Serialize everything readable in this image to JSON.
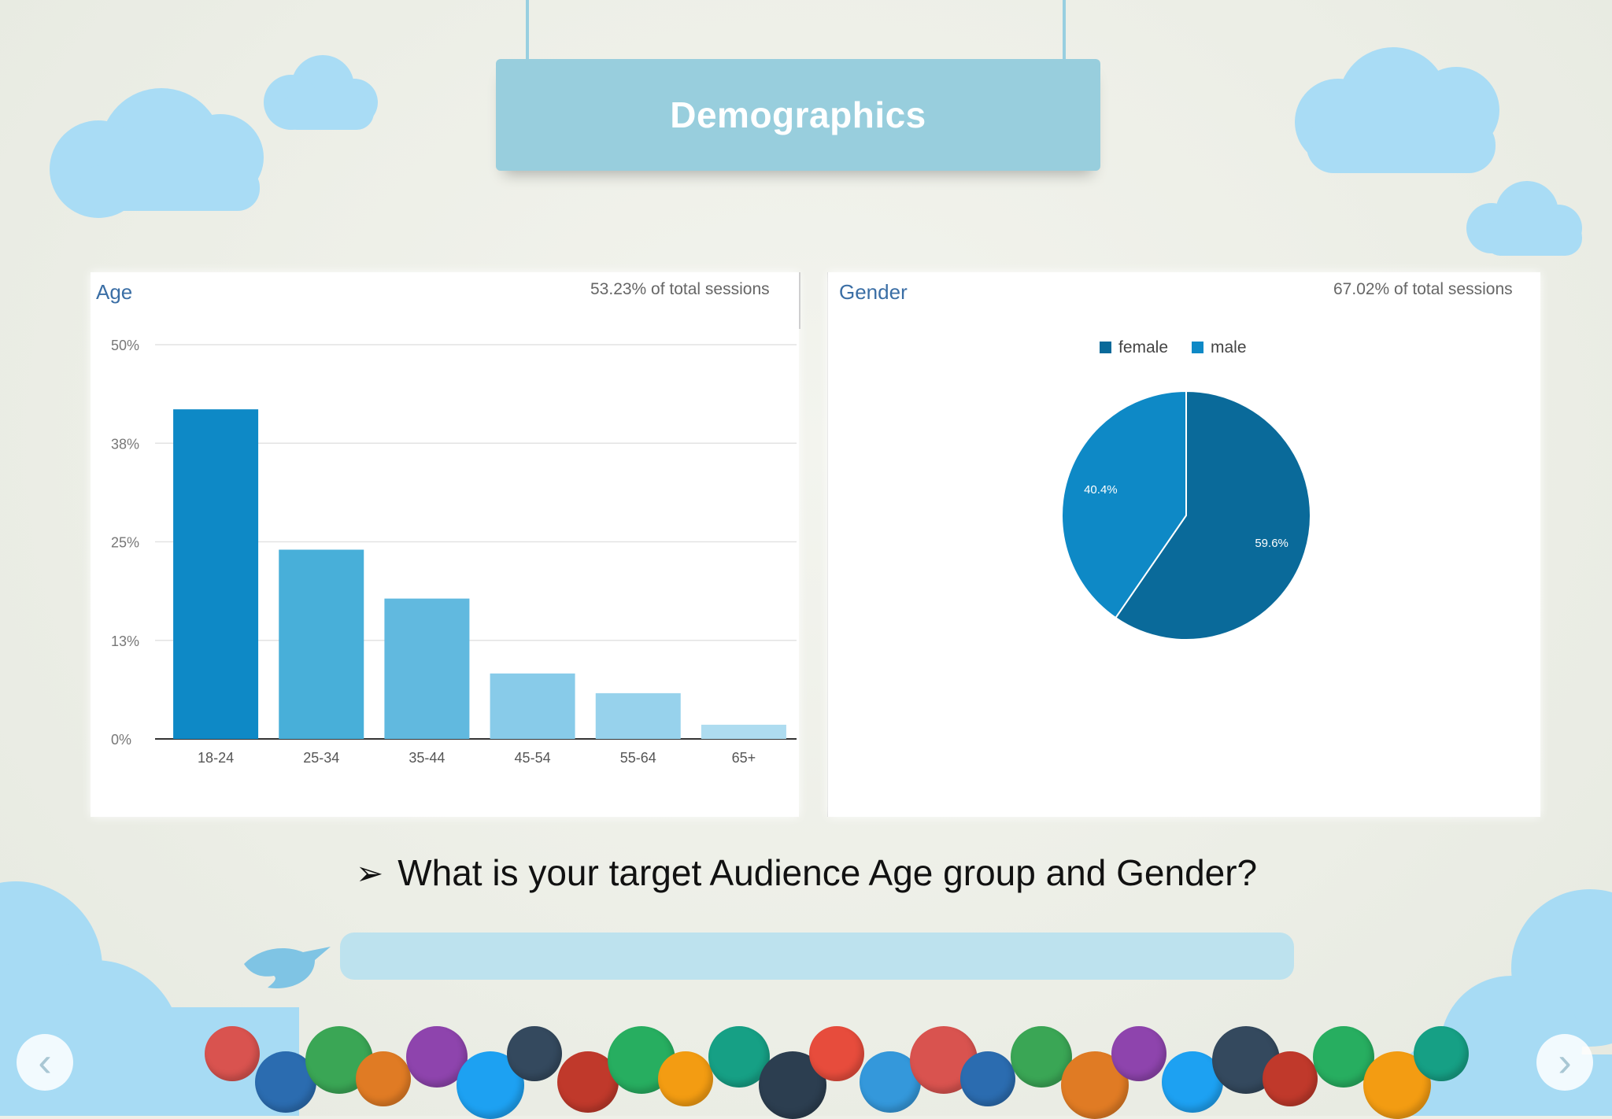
{
  "slide": {
    "title": "Demographics",
    "question": "What is your target Audience Age group and Gender?",
    "bullet_icon": "arrow-bullet-icon"
  },
  "age_panel": {
    "title": "Age",
    "subtitle": "53.23% of total sessions"
  },
  "gender_panel": {
    "title": "Gender",
    "subtitle": "67.02% of total sessions"
  },
  "nav": {
    "prev_label": "‹",
    "next_label": "›"
  },
  "colors": {
    "female": "#0a6a9a",
    "male": "#0e89c6",
    "bars": [
      "#0e89c6",
      "#48afd9",
      "#61b9df",
      "#88cbe9",
      "#97d2ec",
      "#aedcf0"
    ]
  },
  "chart_data": [
    {
      "type": "bar",
      "title": "Age",
      "categories": [
        "18-24",
        "25-34",
        "35-44",
        "45-54",
        "55-64",
        "65+"
      ],
      "values": [
        41.8,
        24.0,
        17.8,
        8.3,
        5.8,
        1.8
      ],
      "yticks": [
        "0%",
        "13%",
        "25%",
        "38%",
        "50%"
      ],
      "ylim": [
        0,
        50
      ],
      "grid": true
    },
    {
      "type": "pie",
      "title": "Gender",
      "labels": [
        "female",
        "male"
      ],
      "values": [
        59.6,
        40.4
      ],
      "value_labels": [
        "59.6%",
        "40.4%"
      ],
      "legend": "top"
    }
  ]
}
